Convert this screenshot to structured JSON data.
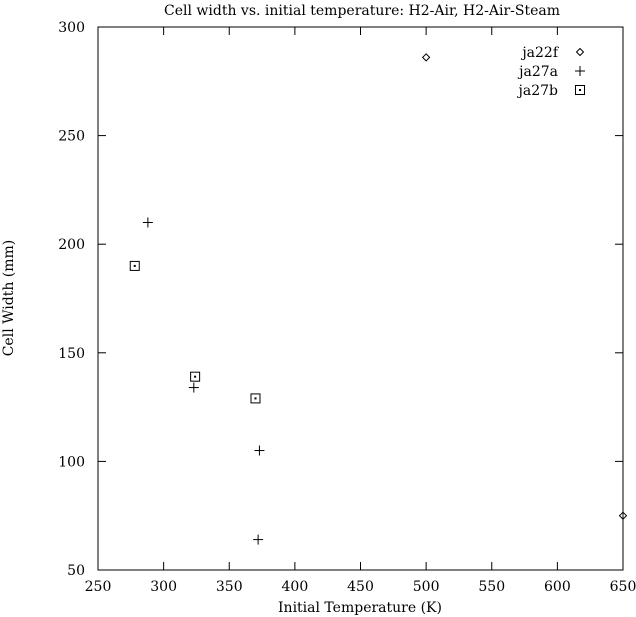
{
  "chart_data": {
    "type": "scatter",
    "title": "Cell width vs. initial temperature: H2-Air, H2-Air-Steam",
    "xlabel": "Initial Temperature (K)",
    "ylabel": "Cell Width (mm)",
    "xlim": [
      250,
      650
    ],
    "ylim": [
      50,
      300
    ],
    "xticks": [
      250,
      300,
      350,
      400,
      450,
      500,
      550,
      600,
      650
    ],
    "yticks": [
      50,
      100,
      150,
      200,
      250,
      300
    ],
    "grid": false,
    "legend_position": "top-right",
    "series": [
      {
        "name": "ja22f",
        "marker": "diamond",
        "points": [
          [
            500,
            286
          ],
          [
            650,
            75
          ]
        ]
      },
      {
        "name": "ja27a",
        "marker": "plus",
        "points": [
          [
            288,
            210
          ],
          [
            323,
            134
          ],
          [
            373,
            105
          ],
          [
            372,
            64
          ]
        ]
      },
      {
        "name": "ja27b",
        "marker": "square-dot",
        "points": [
          [
            278,
            190
          ],
          [
            324,
            139
          ],
          [
            370,
            129
          ]
        ]
      }
    ]
  }
}
